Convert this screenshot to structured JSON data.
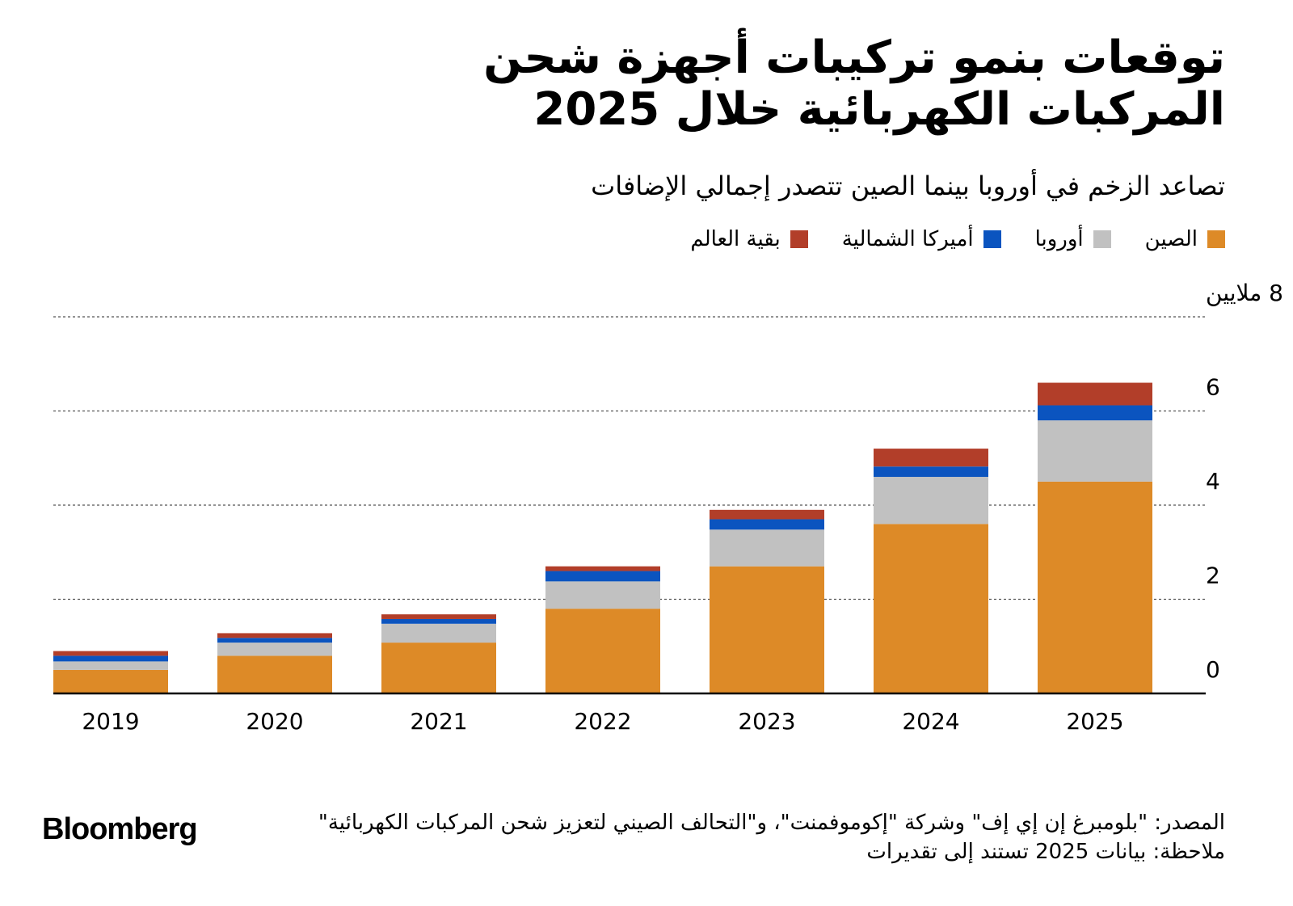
{
  "title_line1": "توقعات بنمو تركيبات أجهزة شحن",
  "title_line2": "المركبات الكهربائية خلال 2025",
  "subtitle": "تصاعد الزخم في أوروبا بينما الصين تتصدر إجمالي الإضافات",
  "legend": [
    {
      "label": "الصين",
      "color": "#dd8a27"
    },
    {
      "label": "أوروبا",
      "color": "#c1c1c1"
    },
    {
      "label": "أميركا الشمالية",
      "color": "#0b54bf"
    },
    {
      "label": "بقية العالم",
      "color": "#b23e29"
    }
  ],
  "chart_data": {
    "type": "bar",
    "stacked": true,
    "title": "",
    "ylabel": "8 ملايين",
    "ylim": [
      0,
      8
    ],
    "yticks": [
      {
        "value": 0,
        "label": "0"
      },
      {
        "value": 2,
        "label": "2"
      },
      {
        "value": 4,
        "label": "4"
      },
      {
        "value": 6,
        "label": "6"
      },
      {
        "value": 8,
        "label": "8 ملايين"
      }
    ],
    "categories": [
      "2019",
      "2020",
      "2021",
      "2022",
      "2023",
      "2024",
      "2025"
    ],
    "series": [
      {
        "name": "الصين",
        "color": "#dd8a27",
        "values": [
          0.5,
          0.8,
          1.08,
          1.8,
          2.7,
          3.6,
          4.5
        ]
      },
      {
        "name": "أوروبا",
        "color": "#c1c1c1",
        "values": [
          0.18,
          0.28,
          0.4,
          0.58,
          0.78,
          1.0,
          1.3
        ]
      },
      {
        "name": "أميركا الشمالية",
        "color": "#0b54bf",
        "values": [
          0.12,
          0.1,
          0.1,
          0.22,
          0.22,
          0.22,
          0.32
        ]
      },
      {
        "name": "بقية العالم",
        "color": "#b23e29",
        "values": [
          0.1,
          0.1,
          0.1,
          0.1,
          0.2,
          0.38,
          0.48
        ]
      }
    ]
  },
  "footer": {
    "source_line1": "المصدر: \"بلومبرغ إن إي إف\" وشركة \"إكوموفمنت\"، و\"التحالف الصيني لتعزيز شحن المركبات الكهربائية\"",
    "note": "ملاحظة: بيانات 2025 تستند إلى تقديرات"
  },
  "brand": "Bloomberg"
}
